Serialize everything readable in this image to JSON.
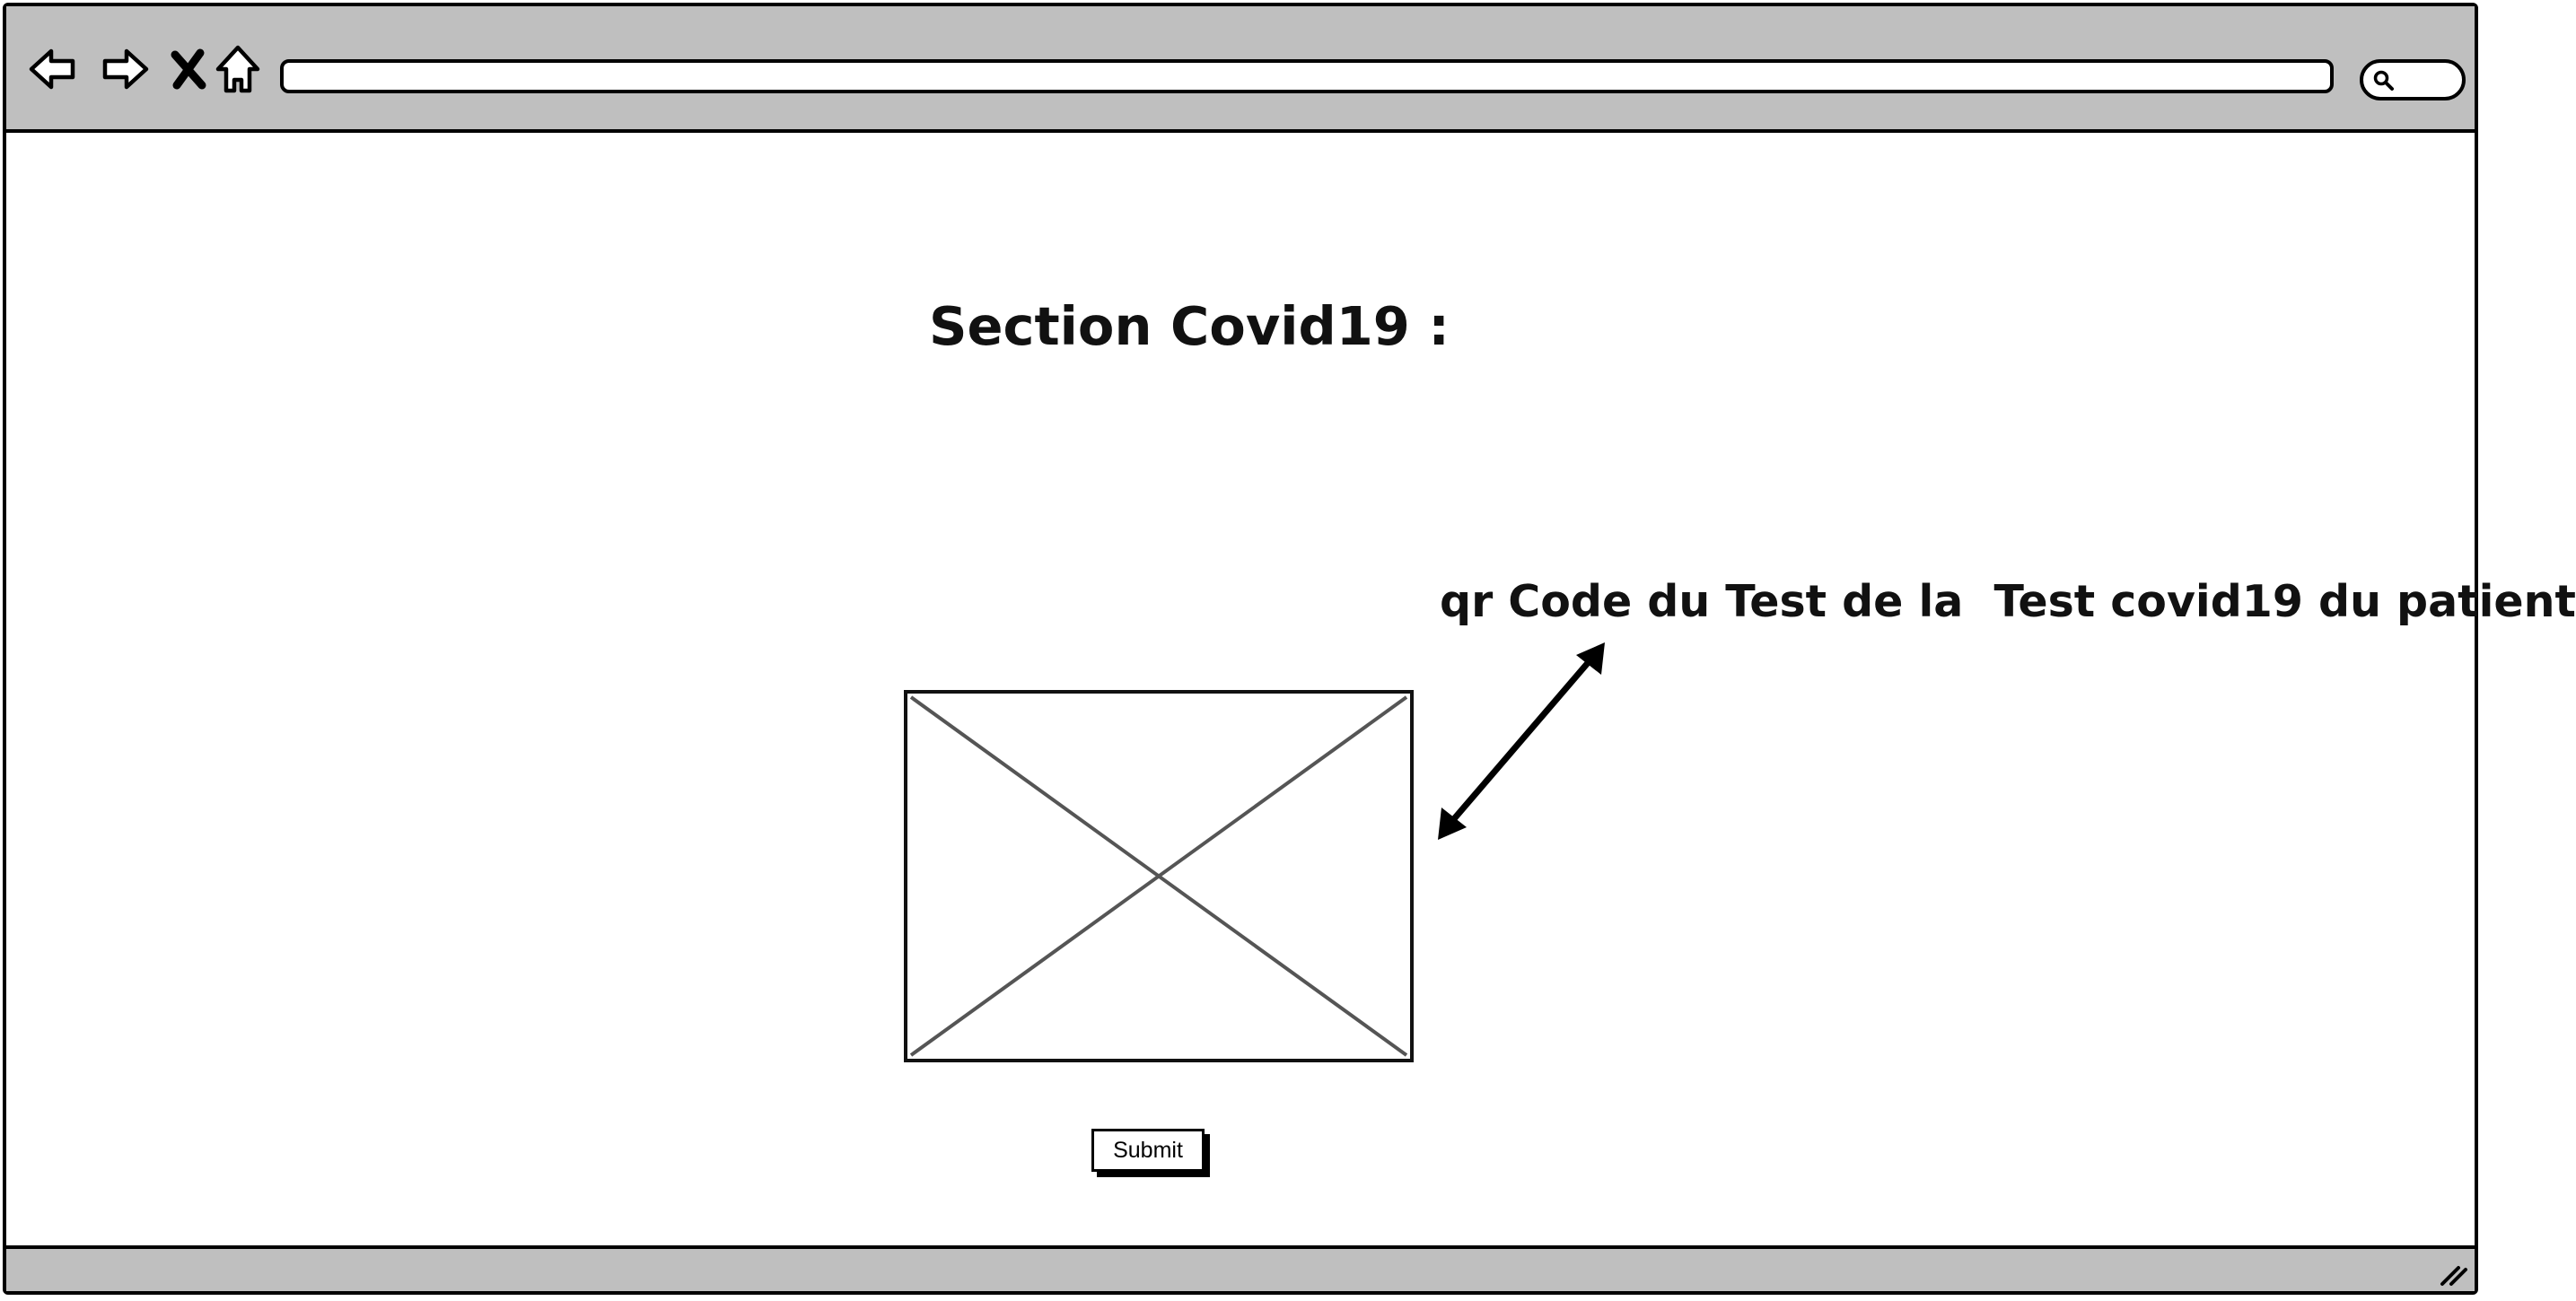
{
  "browser": {
    "back_icon": "back-arrow-icon",
    "forward_icon": "forward-arrow-icon",
    "stop_icon": "close-x-icon",
    "home_icon": "home-icon",
    "url": "",
    "search_icon": "search-icon"
  },
  "main": {
    "title": "Section Covid19 :",
    "annotation": "qr Code du Test de la  Test covid19 du patient",
    "image_placeholder_icon": "image-placeholder-icon",
    "arrow_icon": "double-arrow-icon",
    "submit_label": "Submit"
  },
  "statusbar": {
    "resize_icon": "resize-grip-icon"
  },
  "colors": {
    "chrome_gray": "#bfbfbf",
    "ink": "#000000",
    "placeholder_line": "#555555"
  }
}
